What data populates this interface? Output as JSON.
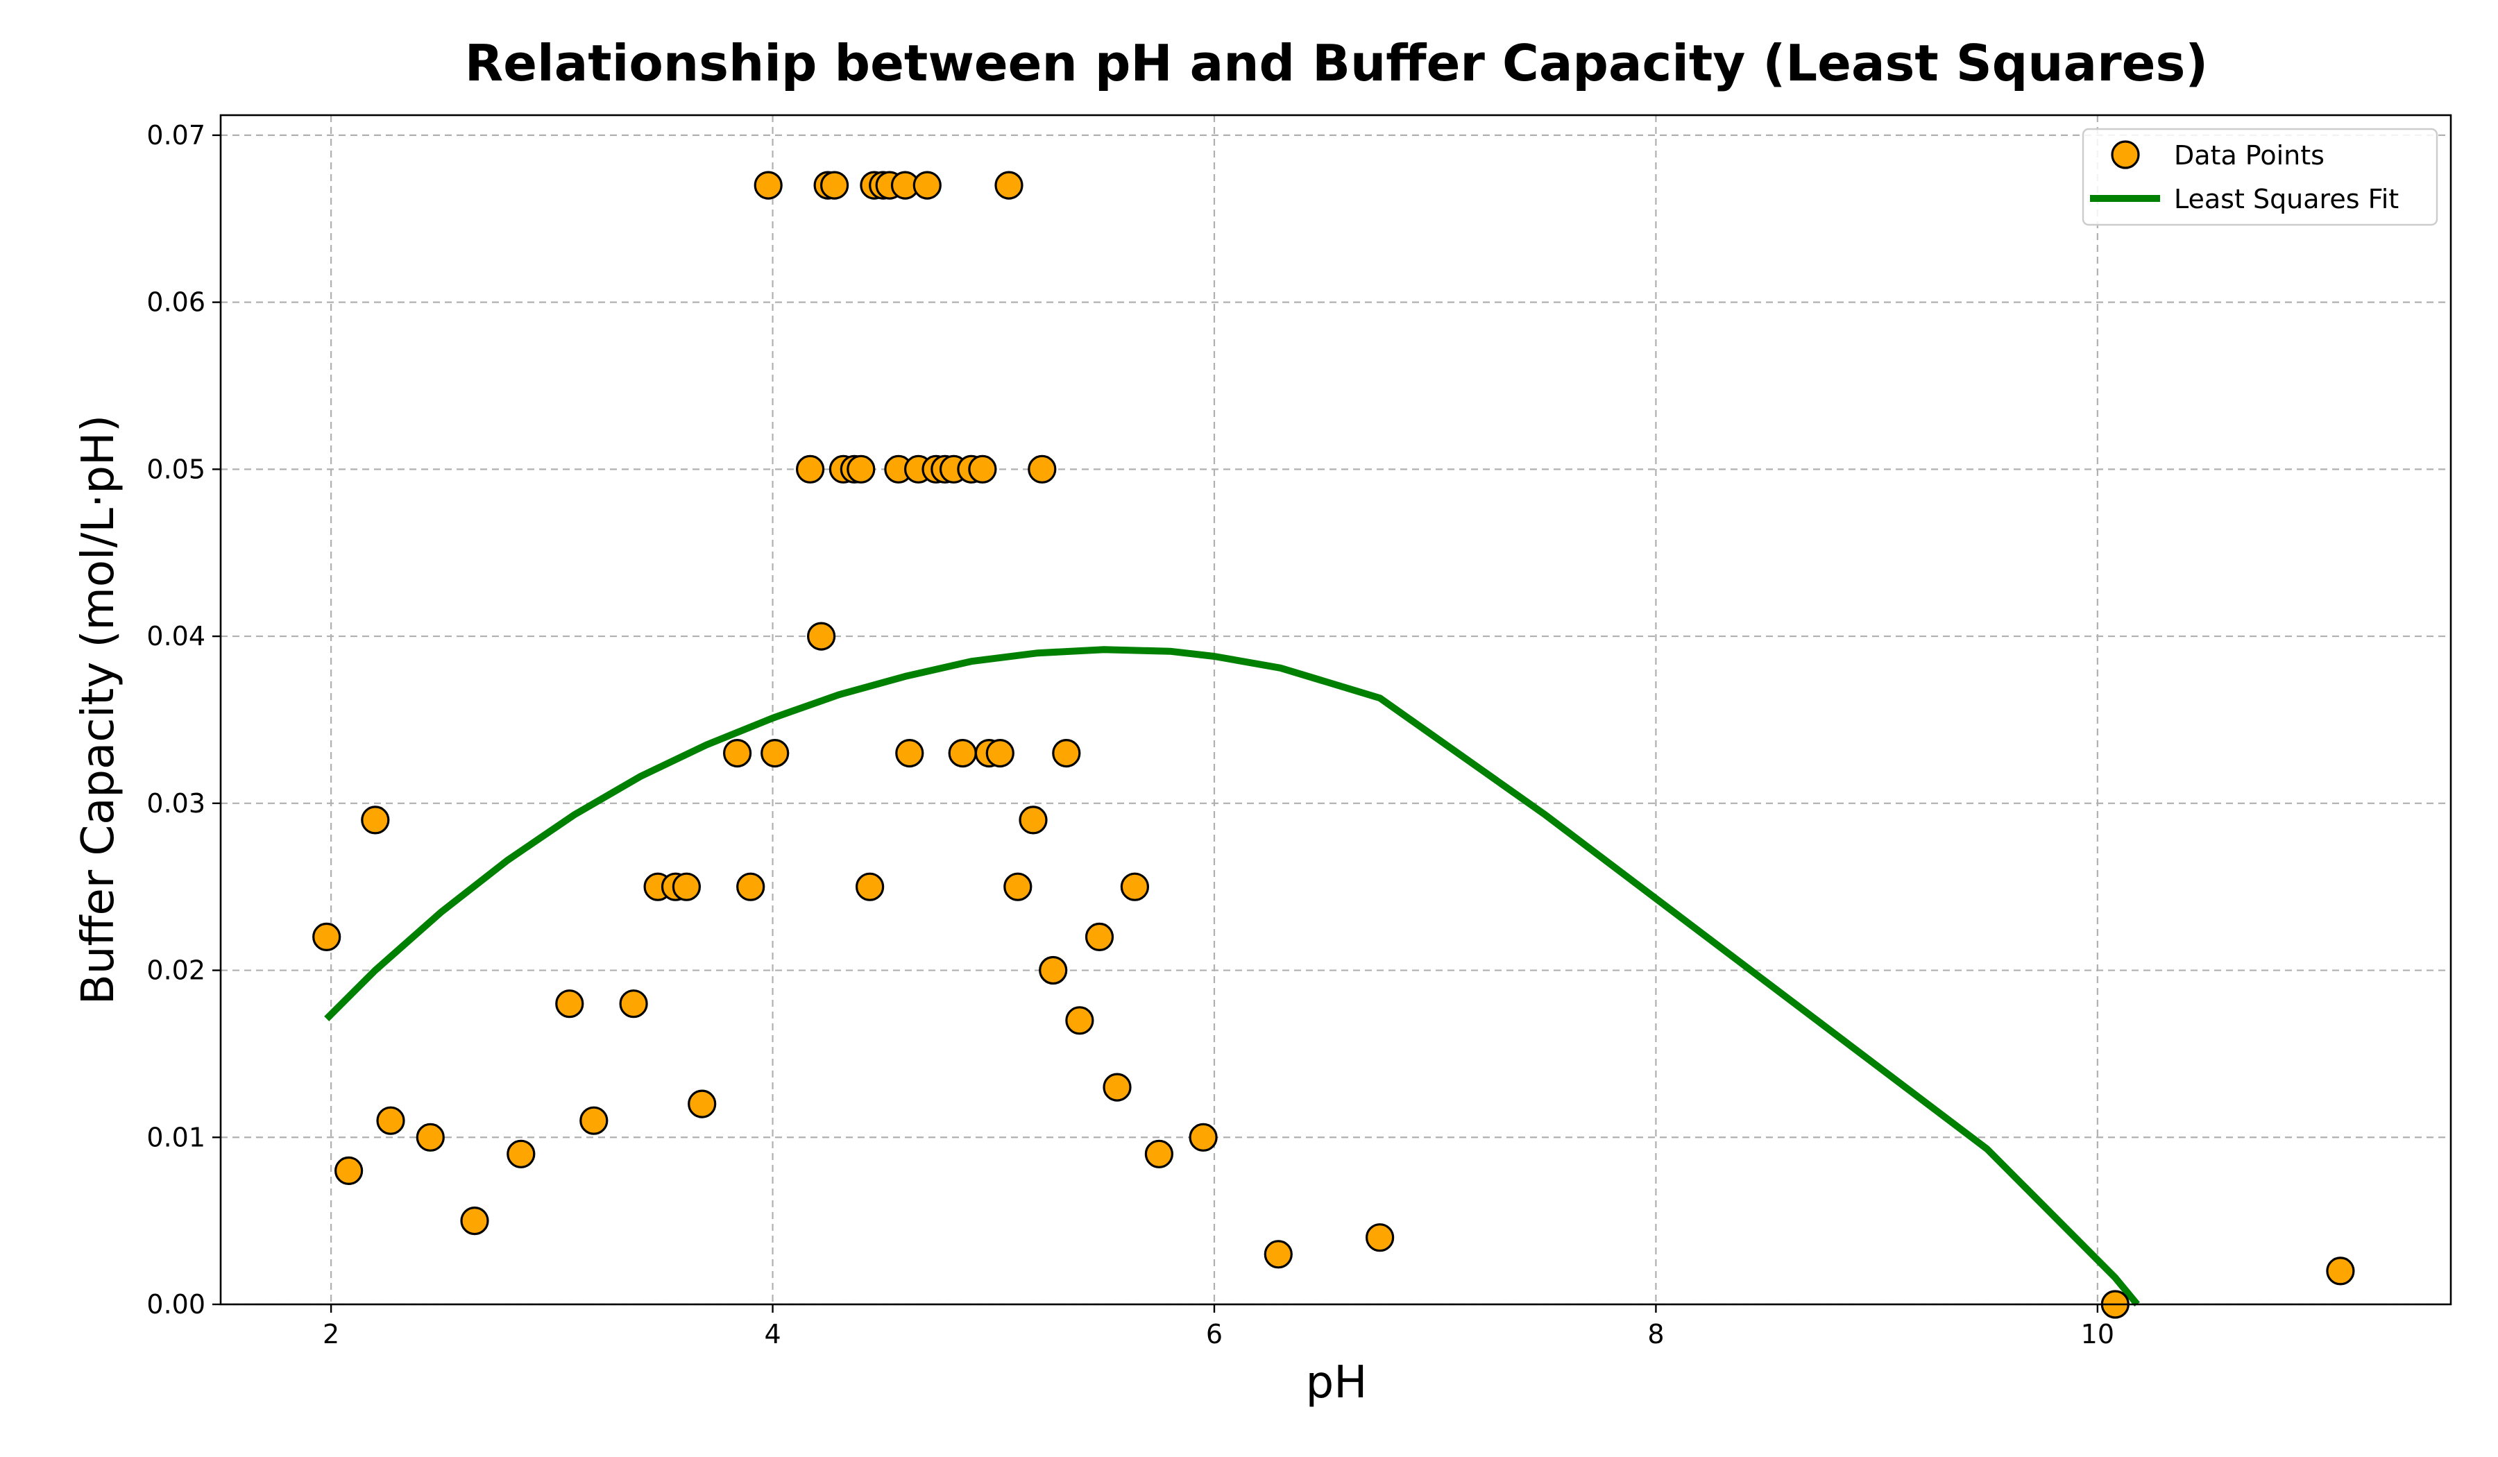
{
  "chart_data": {
    "type": "scatter",
    "title": "Relationship between pH and Buffer Capacity (Least Squares)",
    "xlabel": "pH",
    "ylabel": "Buffer Capacity (mol/L·pH)",
    "xlim": [
      1.5,
      11.6
    ],
    "ylim": [
      0.0,
      0.0712
    ],
    "xticks": [
      2,
      4,
      6,
      8,
      10
    ],
    "yticks": [
      0.0,
      0.01,
      0.02,
      0.03,
      0.04,
      0.05,
      0.06,
      0.07
    ],
    "xtick_labels": [
      "2",
      "4",
      "6",
      "8",
      "10"
    ],
    "ytick_labels": [
      "0.00",
      "0.01",
      "0.02",
      "0.03",
      "0.04",
      "0.05",
      "0.06",
      "0.07"
    ],
    "grid": true,
    "legend_position": "top-right",
    "colors": {
      "points": "#FFA500",
      "fit": "#008000",
      "edge": "#000000",
      "grid": "#b0b0b0"
    },
    "series": [
      {
        "name": "Data Points",
        "kind": "scatter",
        "x": [
          1.98,
          2.08,
          2.2,
          2.27,
          2.45,
          2.65,
          2.86,
          3.08,
          3.19,
          3.37,
          3.48,
          3.56,
          3.61,
          3.68,
          3.84,
          3.9,
          3.98,
          4.01,
          4.17,
          4.22,
          4.25,
          4.28,
          4.32,
          4.37,
          4.4,
          4.44,
          4.46,
          4.5,
          4.53,
          4.57,
          4.6,
          4.62,
          4.66,
          4.7,
          4.74,
          4.78,
          4.82,
          4.86,
          4.9,
          4.95,
          4.98,
          5.03,
          5.07,
          5.11,
          5.18,
          5.22,
          5.27,
          5.33,
          5.39,
          5.48,
          5.56,
          5.64,
          5.75,
          5.95,
          6.29,
          6.75,
          10.08,
          11.1
        ],
        "y": [
          0.022,
          0.008,
          0.029,
          0.011,
          0.01,
          0.005,
          0.009,
          0.018,
          0.011,
          0.018,
          0.025,
          0.025,
          0.025,
          0.012,
          0.033,
          0.025,
          0.067,
          0.033,
          0.05,
          0.04,
          0.067,
          0.067,
          0.05,
          0.05,
          0.05,
          0.025,
          0.067,
          0.067,
          0.067,
          0.05,
          0.067,
          0.033,
          0.05,
          0.067,
          0.05,
          0.05,
          0.05,
          0.033,
          0.05,
          0.05,
          0.033,
          0.033,
          0.067,
          0.025,
          0.029,
          0.05,
          0.02,
          0.033,
          0.017,
          0.022,
          0.013,
          0.025,
          0.009,
          0.01,
          0.003,
          0.004,
          0.0,
          0.002
        ]
      },
      {
        "name": "Least Squares Fit",
        "kind": "line",
        "x": [
          1.98,
          2.2,
          2.5,
          2.8,
          3.1,
          3.4,
          3.7,
          4.0,
          4.3,
          4.6,
          4.9,
          5.2,
          5.5,
          5.8,
          6.0,
          6.3,
          6.75,
          7.5,
          8.5,
          9.5,
          10.08,
          10.18
        ],
        "y": [
          0.0171,
          0.02,
          0.0235,
          0.0266,
          0.0293,
          0.0316,
          0.0335,
          0.0351,
          0.0365,
          0.0376,
          0.0385,
          0.039,
          0.0392,
          0.0391,
          0.0388,
          0.0381,
          0.0363,
          0.0293,
          0.0193,
          0.0093,
          0.0016,
          0.0
        ]
      }
    ]
  }
}
